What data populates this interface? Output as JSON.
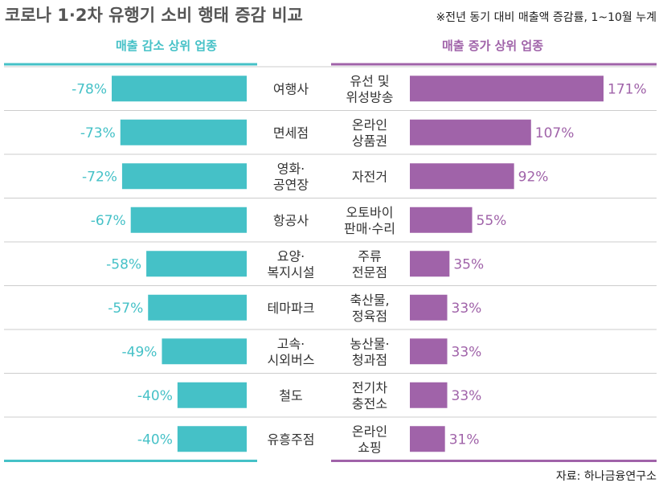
{
  "title": "코로나 1·2차 유행기 소비 행태 증감 비교",
  "note": "※전년 동기 대비 매출액 증감률, 1~10월 누계",
  "source": "자료: 하나금융연구소",
  "colors": {
    "decrease": "#45c1c7",
    "increase": "#a063a9",
    "divider": "#cccccc",
    "text": "#333333"
  },
  "chart_data": [
    {
      "type": "bar",
      "orientation": "horizontal",
      "title": "매출 감소 상위 업종",
      "unit": "%",
      "xlim": [
        -85,
        0
      ],
      "categories": [
        [
          "여행사"
        ],
        [
          "면세점"
        ],
        [
          "영화·",
          "공연장"
        ],
        [
          "항공사"
        ],
        [
          "요양·",
          "복지시설"
        ],
        [
          "테마파크"
        ],
        [
          "고속·",
          "시외버스"
        ],
        [
          "철도"
        ],
        [
          "유흥주점"
        ]
      ],
      "values": [
        -78,
        -73,
        -72,
        -67,
        -58,
        -57,
        -49,
        -40,
        -40
      ],
      "value_labels": [
        "-78%",
        "-73%",
        "-72%",
        "-67%",
        "-58%",
        "-57%",
        "-49%",
        "-40%",
        "-40%"
      ]
    },
    {
      "type": "bar",
      "orientation": "horizontal",
      "title": "매출 증가 상위 업종",
      "unit": "%",
      "xlim": [
        0,
        180
      ],
      "categories": [
        [
          "유선 및",
          "위성방송"
        ],
        [
          "온라인",
          "상품권"
        ],
        [
          "자전거"
        ],
        [
          "오토바이",
          "판매·수리"
        ],
        [
          "주류",
          "전문점"
        ],
        [
          "축산물,",
          "정육점"
        ],
        [
          "농산물·",
          "청과점"
        ],
        [
          "전기차",
          "충전소"
        ],
        [
          "온라인",
          "쇼핑"
        ]
      ],
      "values": [
        171,
        107,
        92,
        55,
        35,
        33,
        33,
        33,
        31
      ],
      "value_labels": [
        "171%",
        "107%",
        "92%",
        "55%",
        "35%",
        "33%",
        "33%",
        "33%",
        "31%"
      ]
    }
  ]
}
